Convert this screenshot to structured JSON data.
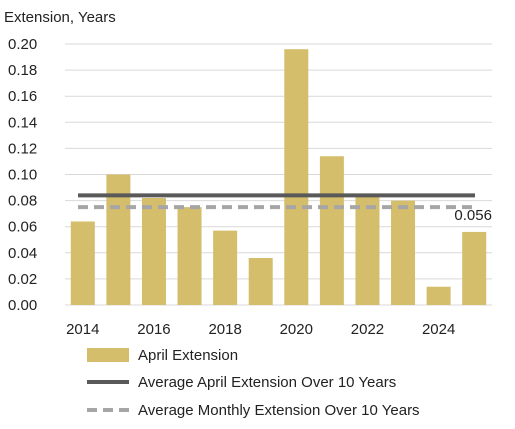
{
  "chart_data": {
    "type": "bar",
    "title": "",
    "ylabel": "Extension, Years",
    "xlabel": "",
    "categories": [
      "2014",
      "2015",
      "2016",
      "2017",
      "2018",
      "2019",
      "2020",
      "2021",
      "2022",
      "2023",
      "2024",
      "2025"
    ],
    "x_tick_labels": [
      "2014",
      "2016",
      "2018",
      "2020",
      "2022",
      "2024"
    ],
    "y_tick_labels": [
      "0.00",
      "0.02",
      "0.04",
      "0.06",
      "0.08",
      "0.10",
      "0.12",
      "0.14",
      "0.16",
      "0.18",
      "0.20"
    ],
    "ylim": [
      0,
      0.2
    ],
    "grid": true,
    "series": [
      {
        "name": "April Extension",
        "kind": "bar",
        "color": "#d4bd6b",
        "values": [
          0.064,
          0.1,
          0.082,
          0.075,
          0.057,
          0.036,
          0.196,
          0.114,
          0.083,
          0.08,
          0.014,
          0.056
        ]
      },
      {
        "name": "Average April Extension Over 10 Years",
        "kind": "hline",
        "color": "#595959",
        "value": 0.084
      },
      {
        "name": "Average Monthly Extension Over 10 Years",
        "kind": "hline-dashed",
        "color": "#a6a6a6",
        "value": 0.075
      }
    ],
    "annotations": [
      {
        "text": "0.056",
        "category": "2025",
        "value": 0.056
      }
    ],
    "legend_position": "bottom"
  }
}
